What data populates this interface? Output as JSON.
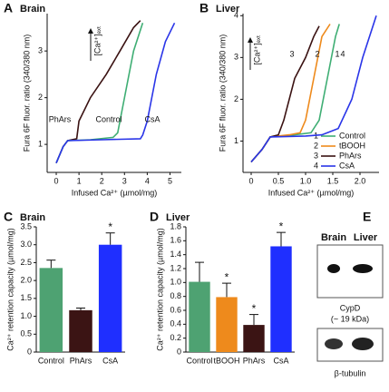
{
  "chart_data": [
    {
      "type": "line",
      "panel_label": "A",
      "title": "Brain",
      "x_label": "Infused Ca²⁺ (µmol/mg)",
      "y_label": "Fura 6F fluor. ratio (340/380 nm)",
      "annotation": "[Ca²⁺]ₑₓₜ",
      "xlim": [
        -0.4,
        5.5
      ],
      "xticks": [
        0,
        1,
        2,
        3,
        4,
        5
      ],
      "ylim": [
        0.4,
        3.8
      ],
      "yticks": [
        1,
        2,
        3
      ],
      "series": [
        {
          "name": "PhArs",
          "color": "#3a1212",
          "x": [
            0,
            0.3,
            0.5,
            0.9,
            1.0,
            1.5,
            2.2,
            2.8,
            3.4,
            3.7
          ],
          "values": [
            0.6,
            0.95,
            1.08,
            1.12,
            1.5,
            2.0,
            2.5,
            3.0,
            3.5,
            3.65
          ]
        },
        {
          "name": "Control",
          "color": "#3fae74",
          "x": [
            0,
            0.3,
            0.5,
            1.5,
            2.5,
            2.7,
            3.0,
            3.4,
            3.8
          ],
          "values": [
            0.6,
            0.95,
            1.08,
            1.1,
            1.15,
            1.25,
            2.0,
            3.0,
            3.6
          ]
        },
        {
          "name": "CsA",
          "color": "#2a35e8",
          "x": [
            0,
            0.3,
            0.5,
            2.0,
            3.7,
            3.8,
            4.0,
            4.4,
            4.8,
            5.2
          ],
          "values": [
            0.6,
            0.95,
            1.08,
            1.1,
            1.12,
            1.2,
            1.5,
            2.5,
            3.2,
            3.6
          ]
        }
      ]
    },
    {
      "type": "line",
      "panel_label": "B",
      "title": "Liver",
      "x_label": "Infused Ca²⁺ (µmol/mg)",
      "y_label": "Fura 6F fluor. ratio (340/380 nm)",
      "annotation": "[Ca²⁺]ₑₓₜ",
      "xlim": [
        -0.15,
        2.35
      ],
      "xticks": [
        0,
        0.5,
        {
          "value": 1,
          "label": "1.0"
        },
        1.5,
        {
          "value": 2,
          "label": "2.0"
        }
      ],
      "ylim": [
        0.25,
        4.05
      ],
      "yticks": [
        1,
        2,
        3,
        4
      ],
      "series": [
        {
          "name": "Control",
          "label": "1",
          "color": "#3fae74",
          "x": [
            0,
            0.2,
            0.35,
            0.8,
            1.1,
            1.25,
            1.4,
            1.55,
            1.62
          ],
          "values": [
            0.5,
            0.8,
            1.1,
            1.15,
            1.2,
            1.5,
            2.5,
            3.5,
            3.8
          ]
        },
        {
          "name": "tBOOH",
          "label": "2",
          "color": "#ee8a1c",
          "x": [
            0,
            0.2,
            0.35,
            0.7,
            0.9,
            1.0,
            1.15,
            1.3,
            1.45
          ],
          "values": [
            0.5,
            0.8,
            1.1,
            1.15,
            1.2,
            1.5,
            2.5,
            3.5,
            3.8
          ]
        },
        {
          "name": "PhArs",
          "label": "3",
          "color": "#3a1212",
          "x": [
            0,
            0.2,
            0.35,
            0.5,
            0.6,
            0.8,
            1.0,
            1.15,
            1.25
          ],
          "values": [
            0.5,
            0.8,
            1.1,
            1.15,
            1.5,
            2.5,
            3.0,
            3.5,
            3.75
          ]
        },
        {
          "name": "CsA",
          "label": "4",
          "color": "#2a35e8",
          "x": [
            0,
            0.2,
            0.35,
            1.0,
            1.3,
            1.6,
            1.85,
            2.05,
            2.3
          ],
          "values": [
            0.5,
            0.8,
            1.1,
            1.12,
            1.15,
            1.3,
            2.0,
            3.0,
            4.0
          ]
        }
      ]
    },
    {
      "type": "bar",
      "panel_label": "C",
      "title": "Brain",
      "y_label": "Ca²⁺ retention capacity (µmol/mg)",
      "categories": [
        "Control",
        "PhArs",
        "CsA"
      ],
      "values": [
        2.35,
        1.17,
        3.0
      ],
      "errors": [
        0.22,
        0.06,
        0.33
      ],
      "colors": [
        "#4ea272",
        "#3b1414",
        "#1f2fff"
      ],
      "significance": [
        null,
        null,
        "*"
      ],
      "ylim": [
        0,
        3.5
      ],
      "yticks": [
        0,
        0.5,
        {
          "value": 1,
          "label": "1.0"
        },
        1.5,
        {
          "value": 2,
          "label": "2.0"
        },
        2.5,
        {
          "value": 3,
          "label": "3.0"
        },
        3.5
      ]
    },
    {
      "type": "bar",
      "panel_label": "D",
      "title": "Liver",
      "y_label": "Ca²⁺ retention capacity (µmol/mg)",
      "categories": [
        "Control",
        "tBOOH",
        "PhArs",
        "CsA"
      ],
      "values": [
        1.01,
        0.79,
        0.39,
        1.52
      ],
      "errors": [
        0.28,
        0.2,
        0.15,
        0.2
      ],
      "colors": [
        "#4ea272",
        "#ee8a1c",
        "#3b1414",
        "#1f2fff"
      ],
      "significance": [
        null,
        "*",
        "*",
        "*"
      ],
      "ylim": [
        0,
        1.8
      ],
      "yticks": [
        0,
        0.2,
        0.4,
        0.6,
        0.8,
        {
          "value": 1,
          "label": "1.0"
        },
        1.2,
        1.4,
        1.6,
        1.8
      ]
    }
  ],
  "blot": {
    "panel_label": "E",
    "lanes": [
      "Brain",
      "Liver"
    ],
    "protein": "CypD",
    "size": "(~ 19 kDa)",
    "loading": "β-tubulin"
  }
}
